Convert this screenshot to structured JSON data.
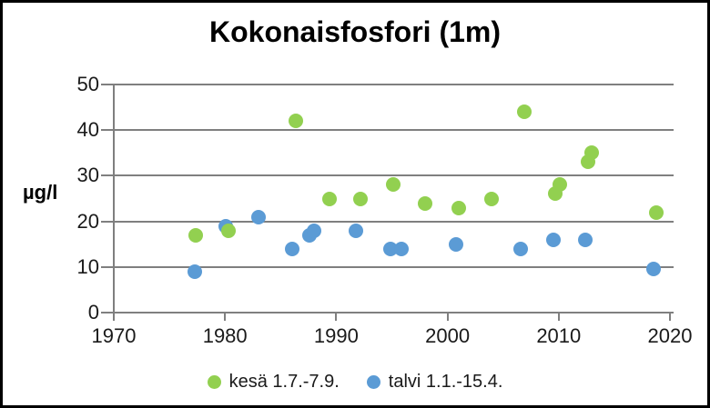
{
  "title": "Kokonaisfosfori (1m)",
  "y_axis_unit_label": "µg/l",
  "legend": {
    "items": [
      {
        "label": "kesä 1.7.-7.9.",
        "series": "kesa",
        "color": "#92D050"
      },
      {
        "label": "talvi 1.1.-15.4.",
        "series": "talvi",
        "color": "#5B9BD5"
      }
    ],
    "position": "bottom"
  },
  "colors": {
    "summer_marker": "#92D050",
    "winter_marker": "#5B9BD5",
    "gridline": "#7f7f7f",
    "text": "#1a1a1a"
  },
  "chart_data": {
    "type": "scatter",
    "title": "Kokonaisfosfori (1m)",
    "xlabel": "",
    "ylabel": "µg/l",
    "xlim": [
      1970,
      2020
    ],
    "ylim": [
      0,
      50
    ],
    "x_ticks": [
      1970,
      1980,
      1990,
      2000,
      2010,
      2020
    ],
    "y_ticks": [
      0,
      10,
      20,
      30,
      40,
      50
    ],
    "grid": "horizontal",
    "legend_position": "bottom",
    "series": [
      {
        "name": "kesä 1.7.-7.9.",
        "color": "#92D050",
        "points": [
          [
            1977.4,
            17
          ],
          [
            1980.3,
            18
          ],
          [
            1986.4,
            42
          ],
          [
            1989.4,
            25
          ],
          [
            1992.2,
            25
          ],
          [
            1995.1,
            28
          ],
          [
            1998,
            24
          ],
          [
            2001,
            23
          ],
          [
            2004,
            25
          ],
          [
            2006.9,
            44
          ],
          [
            2009.7,
            26
          ],
          [
            2010.1,
            28
          ],
          [
            2012.6,
            33
          ],
          [
            2013,
            35
          ],
          [
            2018.8,
            22
          ]
        ]
      },
      {
        "name": "talvi 1.1.-15.4.",
        "color": "#5B9BD5",
        "points": [
          [
            1977.3,
            9
          ],
          [
            1980.1,
            19
          ],
          [
            1983,
            21
          ],
          [
            1986,
            14
          ],
          [
            1987.6,
            17
          ],
          [
            1988,
            18
          ],
          [
            1991.8,
            18
          ],
          [
            1994.9,
            14
          ],
          [
            1995.9,
            14
          ],
          [
            2000.8,
            15
          ],
          [
            2006.6,
            14
          ],
          [
            2009.5,
            16
          ],
          [
            2012.4,
            16
          ],
          [
            2018.5,
            9.5
          ]
        ]
      }
    ]
  }
}
